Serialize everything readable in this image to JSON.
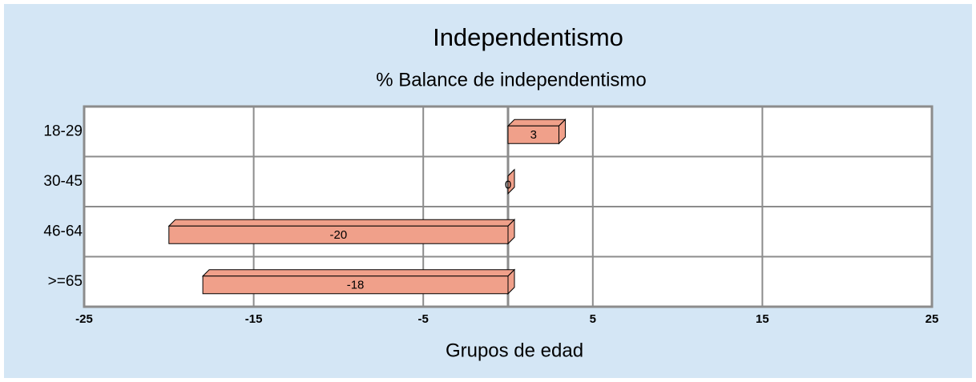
{
  "chart_data": {
    "type": "bar",
    "orientation": "horizontal",
    "title": "Independentismo",
    "subtitle": "% Balance de independentismo",
    "x_label": "Grupos de edad",
    "categories": [
      "18-29",
      "30-45",
      "46-64",
      ">=65"
    ],
    "values": [
      3,
      0,
      -20,
      -18
    ],
    "color": "#f0a08a",
    "xlim": [
      -25,
      25
    ],
    "xticks": [
      -25,
      -15,
      -5,
      5,
      15,
      25
    ],
    "grid": true
  }
}
